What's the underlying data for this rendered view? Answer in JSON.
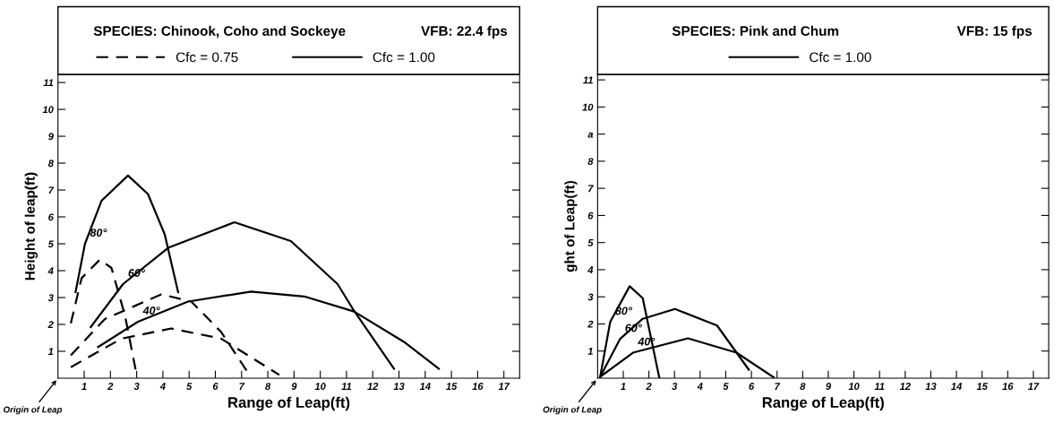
{
  "chart_data": [
    {
      "type": "line",
      "title": "SPECIES: Chinook, Coho and Sockeye",
      "xlabel": "Range of Leap(ft)",
      "ylabel": "Height of leap(ft)",
      "xlim": [
        0,
        17.6
      ],
      "ylim": [
        0,
        11.3
      ],
      "xticks": [
        1,
        2,
        3,
        4,
        5,
        6,
        7,
        8,
        9,
        10,
        11,
        12,
        13,
        14,
        15,
        16,
        17
      ],
      "yticks": [
        1,
        2,
        3,
        4,
        5,
        6,
        7,
        8,
        9,
        10,
        11
      ],
      "grid": false,
      "legend": "top",
      "marker": "none",
      "annotations": [
        "VFB: 22.4 fps",
        "Origin of Leap",
        "80°",
        "60°",
        "40°"
      ],
      "series": [
        {
          "name": "Cfc = 0.75",
          "color": "#000000",
          "line_style": "dashed",
          "x": [
            0.49,
            0.9,
            1.6,
            2.04,
            2.55,
            3.0
          ],
          "values": [
            2.04,
            3.72,
            4.41,
            4.1,
            2.35,
            0.12
          ]
        },
        {
          "color": "#000000",
          "line_style": "dashed",
          "x": [
            0.49,
            1.79,
            3.94,
            5.08,
            6.22,
            7.3
          ],
          "values": [
            0.85,
            2.2,
            3.12,
            2.85,
            1.72,
            0.12
          ]
        },
        {
          "color": "#000000",
          "line_style": "dashed",
          "x": [
            0.49,
            2.42,
            4.32,
            6.22,
            8.44
          ],
          "values": [
            0.41,
            1.47,
            1.85,
            1.47,
            0.12
          ]
        },
        {
          "name": "Cfc = 1.00",
          "color": "#000000",
          "line_style": "solid",
          "x": [
            0.67,
            1.03,
            1.66,
            2.67,
            3.43,
            4.07,
            4.58
          ],
          "values": [
            3.2,
            5.0,
            6.6,
            7.54,
            6.85,
            5.35,
            3.2
          ]
        },
        {
          "color": "#000000",
          "line_style": "solid",
          "x": [
            1.25,
            2.48,
            4.2,
            6.73,
            8.88,
            10.66,
            11.29,
            12.81
          ],
          "values": [
            1.9,
            3.5,
            4.85,
            5.8,
            5.1,
            3.5,
            2.5,
            0.35
          ]
        },
        {
          "color": "#000000",
          "line_style": "solid",
          "x": [
            1.53,
            3.05,
            4.96,
            7.36,
            9.39,
            11.29,
            13.19,
            14.52
          ],
          "values": [
            1.16,
            2.1,
            2.85,
            3.22,
            3.04,
            2.48,
            1.35,
            0.35
          ]
        }
      ]
    },
    {
      "type": "line",
      "title": "SPECIES: Pink and Chum",
      "xlabel": "Range of Leap(ft)",
      "ylabel": "ght of Leap(ft)",
      "xlim": [
        0,
        17.6
      ],
      "ylim": [
        0,
        11.2
      ],
      "xticks": [
        1,
        2,
        3,
        4,
        5,
        6,
        7,
        8,
        9,
        10,
        11,
        12,
        13,
        14,
        15,
        16,
        17
      ],
      "yticks": [
        1,
        2,
        3,
        4,
        5,
        6,
        7,
        8,
        {
          "value": 9,
          "label": "a"
        },
        10,
        11
      ],
      "grid": false,
      "legend": "top",
      "marker": "none",
      "annotations": [
        "VFB: 15 fps",
        "Origin of Leap",
        "80°",
        "60°",
        "40°"
      ],
      "series": [
        {
          "name": "Cfc = 1.00",
          "color": "#000000",
          "line_style": "solid",
          "x": [
            0.1,
            0.49,
            1.25,
            1.76,
            2.41
          ],
          "values": [
            0.05,
            2.07,
            3.39,
            2.95,
            0
          ]
        },
        {
          "color": "#000000",
          "line_style": "solid",
          "x": [
            0.1,
            0.87,
            1.76,
            3.02,
            4.66,
            5.9
          ],
          "values": [
            0.05,
            1.44,
            2.19,
            2.55,
            1.94,
            0.31
          ]
        },
        {
          "color": "#000000",
          "line_style": "solid",
          "x": [
            0.1,
            1.38,
            3.52,
            5.42,
            6.87
          ],
          "values": [
            0.05,
            0.94,
            1.47,
            0.94,
            0.03
          ]
        }
      ]
    }
  ]
}
